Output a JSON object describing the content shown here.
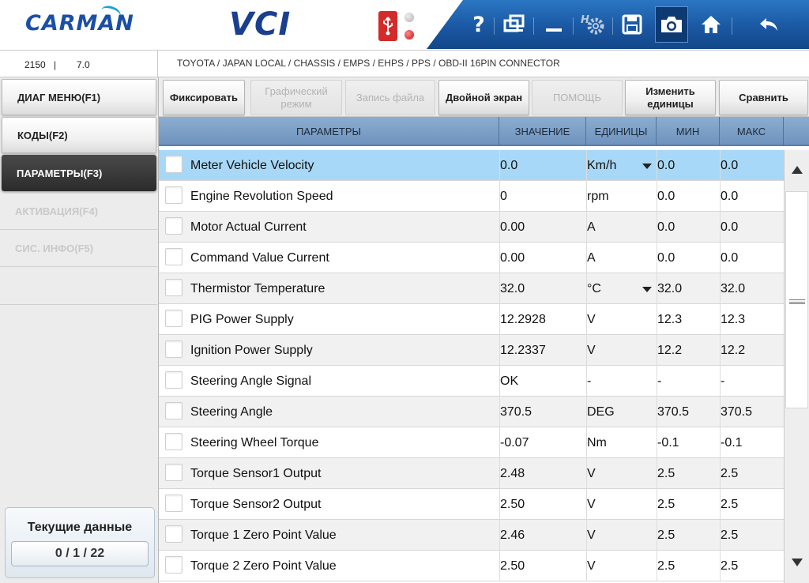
{
  "header": {
    "brand": "CARMAN",
    "product": "VCI",
    "toolbar": {
      "help_icon": "question-mark-icon",
      "help_label": "?",
      "window_icon": "window-icon",
      "minimize_icon": "minimize-icon",
      "settings_icon": "gear-icon",
      "save_icon": "save-icon",
      "camera_icon": "camera-icon",
      "home_icon": "home-icon",
      "back_icon": "back-arrow-icon"
    },
    "status_colors": {
      "usb": "#d42a2a",
      "led_off": "#b0b0b0",
      "led_on": "#d01010"
    }
  },
  "infobar": {
    "left_a": "2150",
    "separator": "|",
    "left_b": "7.0",
    "breadcrumb": "TOYOTA / JAPAN LOCAL / CHASSIS / EMPS / EHPS / PPS / OBD-II 16PIN CONNECTOR"
  },
  "sidebar": {
    "items": [
      {
        "label": "ДИАГ МЕНЮ(F1)",
        "state": "normal"
      },
      {
        "label": "КОДЫ(F2)",
        "state": "normal"
      },
      {
        "label": "ПАРАМЕТРЫ(F3)",
        "state": "active"
      },
      {
        "label": "АКТИВАЦИЯ(F4)",
        "state": "disabled"
      },
      {
        "label": "СИС. ИНФО(F5)",
        "state": "disabled"
      }
    ],
    "current_title": "Текущие данные",
    "current_count": "0 / 1 / 22"
  },
  "actions": [
    {
      "label": "Фиксировать",
      "enabled": true
    },
    {
      "label": "Графический режим",
      "enabled": false
    },
    {
      "label": "Запись файла",
      "enabled": false
    },
    {
      "label": "Двойной экран",
      "enabled": true
    },
    {
      "label": "ПОМОЩЬ",
      "enabled": false
    },
    {
      "label": "Изменить единицы",
      "enabled": true
    },
    {
      "label": "Сравнить",
      "enabled": true
    }
  ],
  "table": {
    "headers": {
      "params": "ПАРАМЕТРЫ",
      "value": "ЗНАЧЕНИЕ",
      "units": "ЕДИНИЦЫ",
      "min": "МИН",
      "max": "МАКС"
    },
    "rows": [
      {
        "name": "Meter Vehicle Velocity",
        "value": "0.0",
        "unit": "Km/h",
        "min": "0.0",
        "max": "0.0",
        "dropdown": true,
        "selected": true
      },
      {
        "name": "Engine Revolution Speed",
        "value": "0",
        "unit": "rpm",
        "min": "0.0",
        "max": "0.0"
      },
      {
        "name": "Motor Actual Current",
        "value": "0.00",
        "unit": "A",
        "min": "0.0",
        "max": "0.0"
      },
      {
        "name": "Command Value Current",
        "value": "0.00",
        "unit": "A",
        "min": "0.0",
        "max": "0.0"
      },
      {
        "name": "Thermistor Temperature",
        "value": "32.0",
        "unit": "°C",
        "min": "32.0",
        "max": "32.0",
        "dropdown": true
      },
      {
        "name": "PIG Power Supply",
        "value": "12.2928",
        "unit": "V",
        "min": "12.3",
        "max": "12.3"
      },
      {
        "name": "Ignition Power Supply",
        "value": "12.2337",
        "unit": "V",
        "min": "12.2",
        "max": "12.2"
      },
      {
        "name": "Steering Angle Signal",
        "value": "OK",
        "unit": "-",
        "min": "-",
        "max": "-"
      },
      {
        "name": "Steering Angle",
        "value": "370.5",
        "unit": "DEG",
        "min": "370.5",
        "max": "370.5"
      },
      {
        "name": "Steering Wheel Torque",
        "value": "-0.07",
        "unit": "Nm",
        "min": "-0.1",
        "max": "-0.1"
      },
      {
        "name": "Torque Sensor1 Output",
        "value": "2.48",
        "unit": "V",
        "min": "2.5",
        "max": "2.5"
      },
      {
        "name": "Torque Sensor2 Output",
        "value": "2.50",
        "unit": "V",
        "min": "2.5",
        "max": "2.5"
      },
      {
        "name": "Torque 1 Zero Point Value",
        "value": "2.46",
        "unit": "V",
        "min": "2.5",
        "max": "2.5"
      },
      {
        "name": "Torque 2 Zero Point Value",
        "value": "2.50",
        "unit": "V",
        "min": "2.5",
        "max": "2.5"
      }
    ]
  },
  "colors": {
    "accent": "#1a58a3",
    "selected_row": "#a8d8f7",
    "header": "#7b9fc8"
  }
}
